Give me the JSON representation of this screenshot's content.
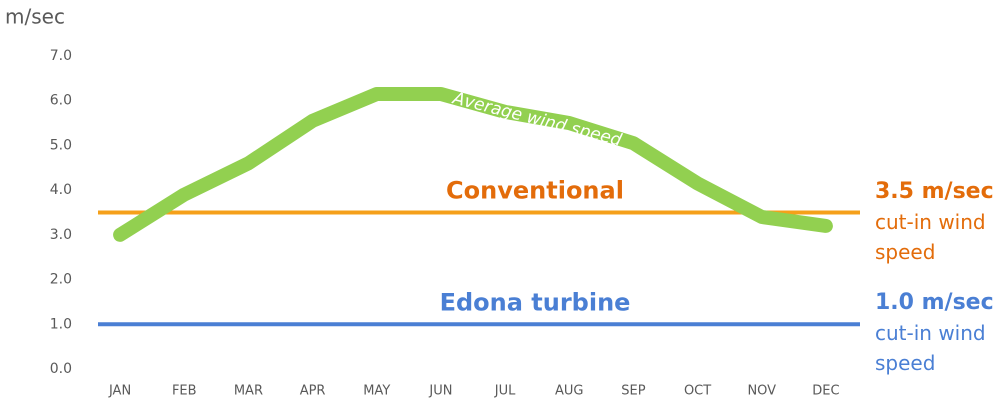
{
  "chart_data": {
    "type": "line",
    "y_label": "m/sec",
    "categories": [
      "JAN",
      "FEB",
      "MAR",
      "APR",
      "MAY",
      "JUN",
      "JUL",
      "AUG",
      "SEP",
      "OCT",
      "NOV",
      "DEC"
    ],
    "series": [
      {
        "name": "Average wind speed",
        "color": "#92d050",
        "values": [
          3.0,
          3.9,
          4.6,
          5.55,
          6.15,
          6.15,
          5.75,
          5.5,
          5.05,
          4.15,
          3.4,
          3.2
        ]
      }
    ],
    "ylim": [
      0,
      7
    ],
    "yticks": [
      {
        "value": 0,
        "label": "0.0"
      },
      {
        "value": 1,
        "label": "1.0"
      },
      {
        "value": 2,
        "label": "2.0"
      },
      {
        "value": 3,
        "label": "3.0"
      },
      {
        "value": 4,
        "label": "4.0"
      },
      {
        "value": 5,
        "label": "5.0"
      },
      {
        "value": 6,
        "label": "6.0"
      },
      {
        "value": 7,
        "label": "7.0"
      }
    ],
    "reference_lines": [
      {
        "name": "Conventional",
        "value": 3.5,
        "value_label": "3.5 m/sec",
        "note": "cut-in wind speed",
        "color": "#f5a01a",
        "text_color": "#e36c0a"
      },
      {
        "name": "Edona turbine",
        "value": 1.0,
        "value_label": "1.0 m/sec",
        "note": "cut-in wind speed",
        "color": "#4a7fd4",
        "text_color": "#4a7fd4"
      }
    ]
  }
}
